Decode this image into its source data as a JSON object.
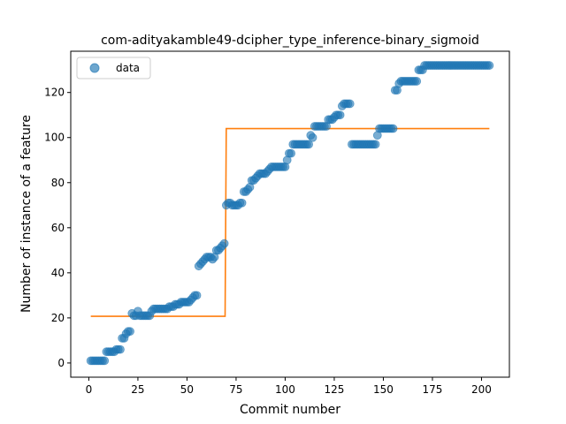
{
  "chart_data": {
    "type": "scatter",
    "title": "com-adityakamble49-dcipher_type_inference-binary_sigmoid",
    "xlabel": "Commit number",
    "ylabel": "Number of instance of a feature",
    "xlim": [
      -9.2,
      214.2
    ],
    "ylim": [
      -6.3,
      138.3
    ],
    "xticks": [
      0,
      25,
      50,
      75,
      100,
      125,
      150,
      175,
      200
    ],
    "yticks": [
      0,
      20,
      40,
      60,
      80,
      100,
      120
    ],
    "grid": false,
    "legend": {
      "position": "top-left",
      "entries": [
        "data"
      ]
    },
    "colors": {
      "data": "#1f77b4",
      "fit": "#ff7f0e"
    },
    "series": [
      {
        "name": "data",
        "kind": "scatter",
        "x": [
          1,
          2,
          3,
          4,
          5,
          6,
          7,
          8,
          9,
          10,
          11,
          12,
          13,
          14,
          15,
          16,
          17,
          18,
          19,
          20,
          21,
          22,
          23,
          24,
          25,
          26,
          27,
          28,
          29,
          30,
          31,
          32,
          33,
          34,
          35,
          36,
          37,
          38,
          39,
          40,
          41,
          42,
          43,
          44,
          45,
          46,
          47,
          48,
          49,
          50,
          51,
          52,
          53,
          54,
          55,
          56,
          57,
          58,
          59,
          60,
          61,
          62,
          63,
          64,
          65,
          66,
          67,
          68,
          69,
          70,
          71,
          72,
          73,
          74,
          75,
          76,
          77,
          78,
          79,
          80,
          81,
          82,
          83,
          84,
          85,
          86,
          87,
          88,
          89,
          90,
          91,
          92,
          93,
          94,
          95,
          96,
          97,
          98,
          99,
          100,
          101,
          102,
          103,
          104,
          105,
          106,
          107,
          108,
          109,
          110,
          111,
          112,
          113,
          114,
          115,
          116,
          117,
          118,
          119,
          120,
          121,
          122,
          123,
          124,
          125,
          126,
          127,
          128,
          129,
          130,
          131,
          132,
          133,
          134,
          135,
          136,
          137,
          138,
          139,
          140,
          141,
          142,
          143,
          144,
          145,
          146,
          147,
          148,
          149,
          150,
          151,
          152,
          153,
          154,
          155,
          156,
          157,
          158,
          159,
          160,
          161,
          162,
          163,
          164,
          165,
          166,
          167,
          168,
          169,
          170,
          171,
          172,
          173,
          174,
          175,
          176,
          177,
          178,
          179,
          180,
          181,
          182,
          183,
          184,
          185,
          186,
          187,
          188,
          189,
          190,
          191,
          192,
          193,
          194,
          195,
          196,
          197,
          198,
          199,
          200,
          201,
          202,
          203,
          204
        ],
        "y": [
          1,
          1,
          1,
          1,
          1,
          1,
          1,
          1,
          5,
          5,
          5,
          5,
          5,
          6,
          6,
          6,
          11,
          11,
          13,
          14,
          14,
          22,
          21,
          21,
          23,
          21,
          21,
          21,
          21,
          21,
          21,
          23,
          24,
          24,
          24,
          24,
          24,
          24,
          24,
          24,
          25,
          25,
          25,
          26,
          26,
          26,
          27,
          27,
          27,
          27,
          27,
          28,
          29,
          30,
          30,
          43,
          44,
          45,
          46,
          47,
          47,
          47,
          46,
          47,
          50,
          50,
          51,
          52,
          53,
          70,
          71,
          71,
          70,
          70,
          70,
          70,
          71,
          71,
          76,
          76,
          77,
          78,
          81,
          81,
          82,
          83,
          84,
          84,
          84,
          84,
          85,
          86,
          87,
          87,
          87,
          87,
          87,
          87,
          87,
          87,
          90,
          93,
          93,
          97,
          97,
          97,
          97,
          97,
          97,
          97,
          97,
          97,
          101,
          100,
          105,
          105,
          105,
          105,
          105,
          105,
          105,
          108,
          108,
          108,
          109,
          110,
          110,
          110,
          114,
          115,
          115,
          115,
          115,
          97,
          97,
          97,
          97,
          97,
          97,
          97,
          97,
          97,
          97,
          97,
          97,
          97,
          101,
          104,
          104,
          104,
          104,
          104,
          104,
          104,
          104,
          121,
          121,
          124,
          125,
          125,
          125,
          125,
          125,
          125,
          125,
          125,
          125,
          130,
          130,
          130,
          132,
          132,
          132,
          132,
          132,
          132,
          132,
          132,
          132,
          132,
          132,
          132,
          132,
          132,
          132,
          132,
          132,
          132,
          132,
          132,
          132,
          132,
          132,
          132,
          132,
          132,
          132,
          132,
          132,
          132,
          132,
          132,
          132,
          132
        ]
      },
      {
        "name": "",
        "kind": "line",
        "x": [
          1,
          69.4,
          70,
          204
        ],
        "y": [
          20.7,
          20.7,
          104,
          104
        ]
      }
    ]
  }
}
